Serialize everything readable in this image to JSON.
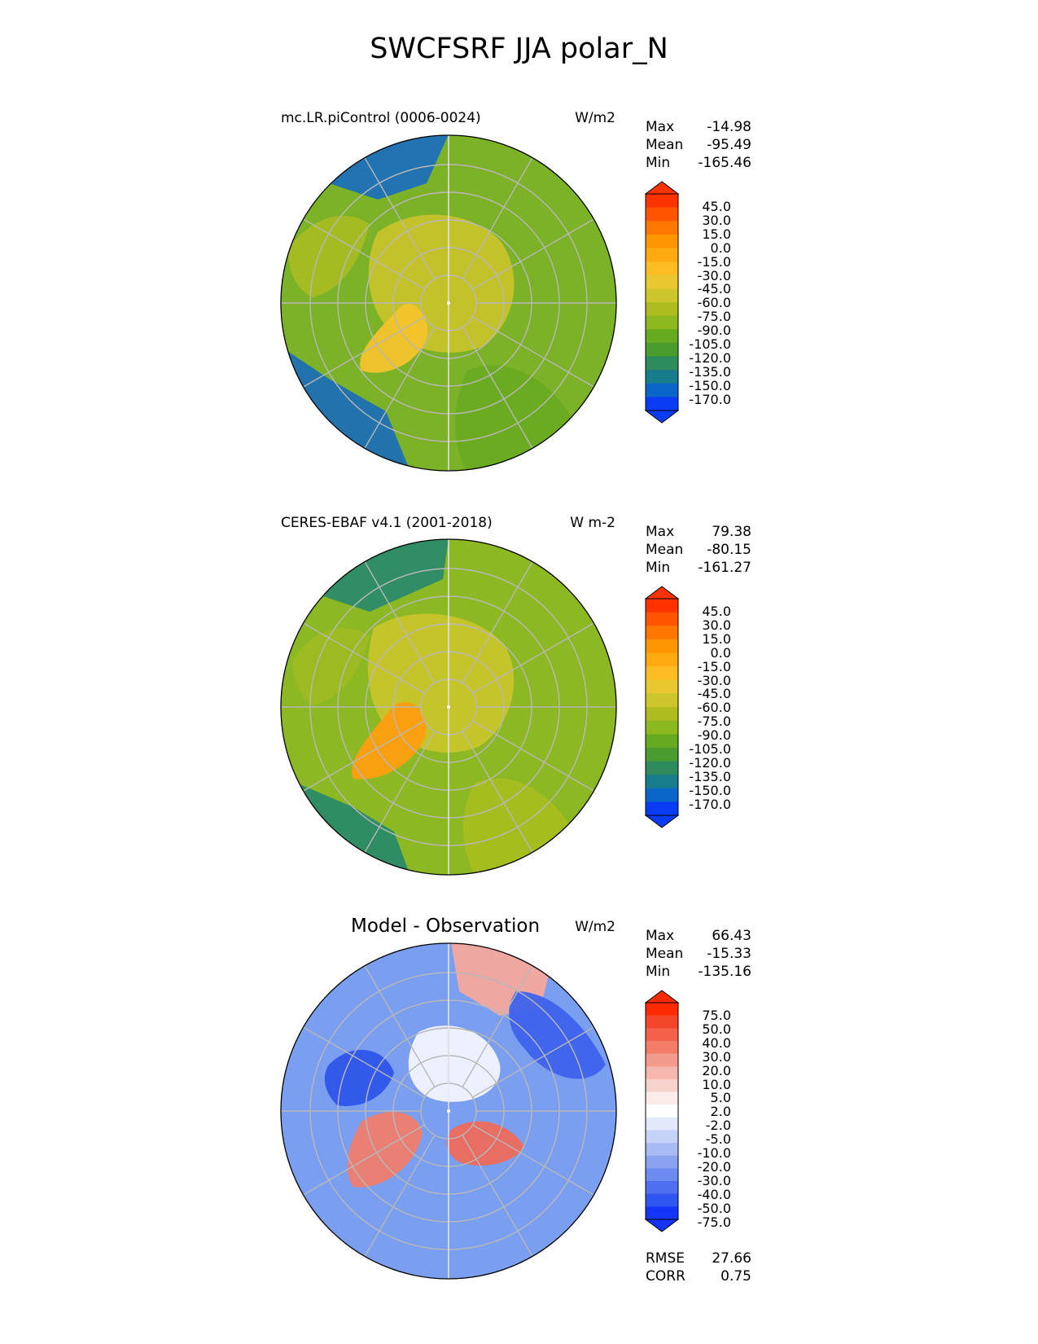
{
  "figure": {
    "title": "SWCFSRF JJA polar_N"
  },
  "panels": [
    {
      "title": "mc.LR.piControl (0006-0024)",
      "units": "W/m2",
      "stats": [
        {
          "label": "Max",
          "value": "-14.98"
        },
        {
          "label": "Mean",
          "value": "-95.49"
        },
        {
          "label": "Min",
          "value": "-165.46"
        }
      ],
      "colorbar": {
        "labels": [
          "45.0",
          "30.0",
          "15.0",
          "0.0",
          "-15.0",
          "-30.0",
          "-45.0",
          "-60.0",
          "-75.0",
          "-90.0",
          "-105.0",
          "-120.0",
          "-135.0",
          "-150.0",
          "-170.0"
        ],
        "colors": [
          "#ff3300",
          "#ff5500",
          "#ff7700",
          "#ff9500",
          "#ffaa11",
          "#fcbc22",
          "#e9c730",
          "#cdc62a",
          "#aebc21",
          "#8db81f",
          "#66aa1f",
          "#4a9c2f",
          "#2f8a5e",
          "#177c8c",
          "#0a65c8",
          "#0b3cf5"
        ]
      },
      "map": {
        "background": "#7cb228",
        "regions": [
          {
            "name": "pacific-sector-cloud",
            "color": "#1c70b8"
          },
          {
            "name": "atlantic-sector-cloud",
            "color": "#1d6fb3"
          },
          {
            "name": "arctic-ocean",
            "color": "#c8c32a"
          },
          {
            "name": "greenland",
            "color": "#f4c32a"
          },
          {
            "name": "siberia",
            "color": "#6aab22"
          },
          {
            "name": "north-america",
            "color": "#a6bd22"
          }
        ]
      }
    },
    {
      "title": "CERES-EBAF v4.1 (2001-2018)",
      "units": "W m-2",
      "stats": [
        {
          "label": "Max",
          "value": "79.38"
        },
        {
          "label": "Mean",
          "value": "-80.15"
        },
        {
          "label": "Min",
          "value": "-161.27"
        }
      ],
      "colorbar": {
        "labels": [
          "45.0",
          "30.0",
          "15.0",
          "0.0",
          "-15.0",
          "-30.0",
          "-45.0",
          "-60.0",
          "-75.0",
          "-90.0",
          "-105.0",
          "-120.0",
          "-135.0",
          "-150.0",
          "-170.0"
        ],
        "colors": [
          "#ff3300",
          "#ff5500",
          "#ff7700",
          "#ff9500",
          "#ffaa11",
          "#fcbc22",
          "#e9c730",
          "#cdc62a",
          "#aebc21",
          "#8db81f",
          "#66aa1f",
          "#4a9c2f",
          "#2f8a5e",
          "#177c8c",
          "#0a65c8",
          "#0b3cf5"
        ]
      },
      "map": {
        "background": "#8cb823",
        "regions": [
          {
            "name": "pacific-sector-cloud",
            "color": "#2b8a6a"
          },
          {
            "name": "atlantic-sector-cloud",
            "color": "#2a8a68"
          },
          {
            "name": "arctic-ocean",
            "color": "#c8c52c"
          },
          {
            "name": "greenland",
            "color": "#ff9e10"
          },
          {
            "name": "siberia",
            "color": "#a8bd20"
          },
          {
            "name": "north-america",
            "color": "#9cbb22"
          }
        ]
      }
    },
    {
      "title": "Model - Observation",
      "units": "W/m2",
      "stats": [
        {
          "label": "Max",
          "value": "66.43"
        },
        {
          "label": "Mean",
          "value": "-15.33"
        },
        {
          "label": "Min",
          "value": "-135.16"
        }
      ],
      "extra_stats": [
        {
          "label": "RMSE",
          "value": "27.66"
        },
        {
          "label": "CORR",
          "value": "0.75"
        }
      ],
      "colorbar": {
        "labels": [
          "75.0",
          "50.0",
          "40.0",
          "30.0",
          "20.0",
          "10.0",
          "5.0",
          "2.0",
          "-2.0",
          "-5.0",
          "-10.0",
          "-20.0",
          "-30.0",
          "-40.0",
          "-50.0",
          "-75.0"
        ],
        "colors": [
          "#ff2a00",
          "#f5452c",
          "#f5604a",
          "#f47d6a",
          "#f49a8c",
          "#f5b6ad",
          "#f7d2cd",
          "#fbecea",
          "#ffffff",
          "#e3e8fb",
          "#c7d2f8",
          "#a9bbf4",
          "#8aa2f0",
          "#6c8af0",
          "#4d6ff0",
          "#3155f0",
          "#1435f5"
        ]
      },
      "map": {
        "background": "#7b9ff0",
        "regions": [
          {
            "name": "pacific-sector-bias",
            "color": "#f6a89c"
          },
          {
            "name": "siberia-bias",
            "color": "#3e63ec"
          },
          {
            "name": "arctic-ocean-bias",
            "color": "#f3f4ff"
          },
          {
            "name": "greenland-margin-bias",
            "color": "#f07e6c"
          },
          {
            "name": "canadian-archipelago-bias",
            "color": "#2f55ea"
          },
          {
            "name": "barents-sea-bias",
            "color": "#ee6a5a"
          }
        ]
      }
    }
  ]
}
